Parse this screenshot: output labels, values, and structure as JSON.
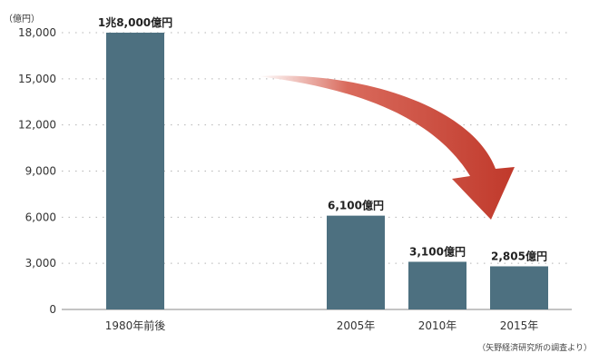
{
  "chart_data": {
    "type": "bar",
    "categories": [
      "1980年前後",
      "2005年",
      "2010年",
      "2015年"
    ],
    "values": [
      18000,
      6100,
      3100,
      2805
    ],
    "data_labels": [
      "1兆8,000億円",
      "6,100億円",
      "3,100億円",
      "2,805億円"
    ],
    "ylabel": "（億円）",
    "ylim": [
      0,
      18000
    ],
    "yticks": [
      0,
      3000,
      6000,
      9000,
      12000,
      15000,
      18000
    ],
    "ytick_labels": [
      "0",
      "3,000",
      "6,000",
      "9,000",
      "12,000",
      "15,000",
      "18,000"
    ],
    "source_note": "（矢野経済研究所の調査より）",
    "grid": "horizontal dotted",
    "legend": "none",
    "annotation": "red curved arrow pointing down from the 1980 bar toward the 2015 bar",
    "bar_color": "#4d7080",
    "arrow_color": "#c0392b"
  }
}
